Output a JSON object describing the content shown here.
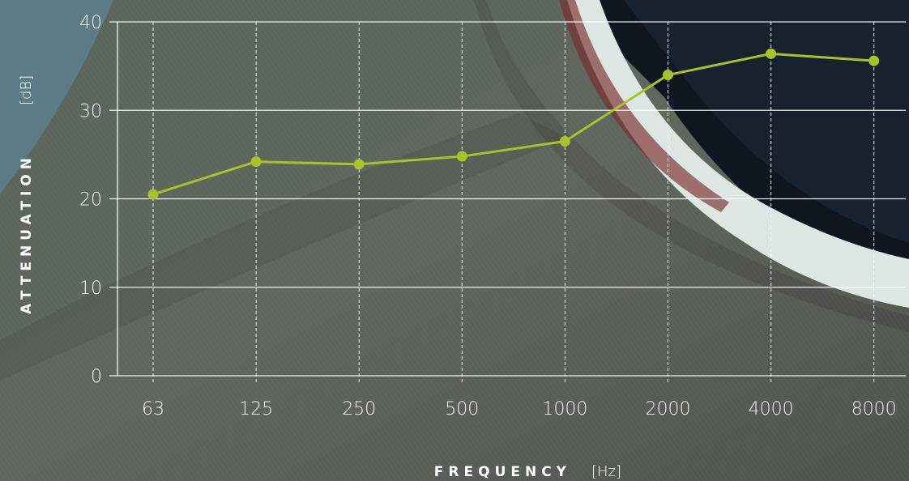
{
  "chart_data": {
    "type": "line",
    "x": [
      "63",
      "125",
      "250",
      "500",
      "1000",
      "2000",
      "4000",
      "8000"
    ],
    "series": [
      {
        "values": [
          20.5,
          24.2,
          23.9,
          24.8,
          26.5,
          34.0,
          36.4,
          35.6
        ],
        "color": "#a8c32a"
      }
    ],
    "xlabel": "FREQUENCY",
    "xlabel_unit": "[Hz]",
    "ylabel": "ATTENUATION",
    "ylabel_unit": "[dB]",
    "ylim": [
      0,
      40
    ],
    "yticks": [
      "0",
      "10",
      "20",
      "30",
      "40"
    ],
    "grid": "horizontal solid, vertical dashed",
    "line_color": "#a8c32a",
    "grid_color": "#ffffff"
  }
}
